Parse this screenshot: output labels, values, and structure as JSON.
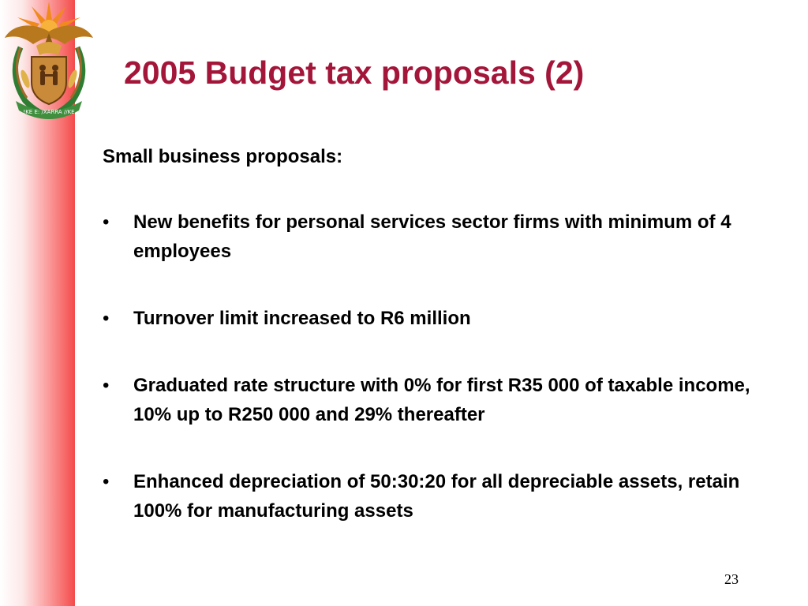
{
  "slide": {
    "title": "2005 Budget tax proposals (2)",
    "subheading": "Small business proposals:",
    "bullet_marker": "•",
    "bullets": [
      {
        "text": "New benefits for personal services sector firms with minimum of 4 employees"
      },
      {
        "text": "Turnover limit increased to R6 million"
      },
      {
        "text": "Graduated rate structure with 0% for first R35 000 of taxable income, 10% up to R250 000 and 29% thereafter"
      },
      {
        "text": "Enhanced depreciation of 50:30:20 for all depreciable assets, retain 100% for manufacturing assets"
      }
    ],
    "page_number": "23"
  },
  "logo": {
    "icon": "south-africa-coat-of-arms-icon",
    "motto": "!KE E: /XARRA //KE"
  },
  "colors": {
    "title": "#a3163a",
    "side_band_edge": "#f44b4b",
    "body_text": "#000000"
  }
}
